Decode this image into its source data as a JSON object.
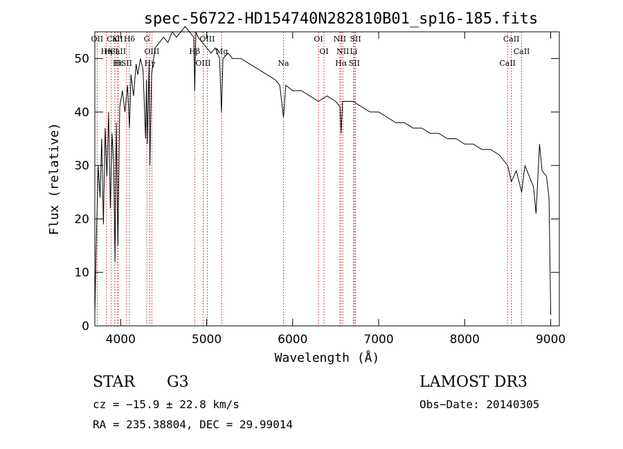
{
  "chart_data": {
    "type": "line",
    "title": "spec-56722-HD154740N282810B01_sp16-185.fits",
    "xlabel": "Wavelength (Å)",
    "ylabel": "Flux (relative)",
    "xlim": [
      3700,
      9100
    ],
    "ylim": [
      0,
      55
    ],
    "xticks": [
      4000,
      5000,
      6000,
      7000,
      8000,
      9000
    ],
    "yticks": [
      0,
      10,
      20,
      30,
      40,
      50
    ],
    "grid": false,
    "line_color": "#000000",
    "marker_color": "#cc2222",
    "series": [
      {
        "name": "flux",
        "x": [
          3700,
          3720,
          3740,
          3760,
          3780,
          3800,
          3820,
          3840,
          3860,
          3880,
          3900,
          3920,
          3934,
          3950,
          3968,
          3990,
          4020,
          4050,
          4080,
          4102,
          4120,
          4150,
          4180,
          4200,
          4230,
          4260,
          4290,
          4300,
          4310,
          4330,
          4340,
          4360,
          4400,
          4450,
          4500,
          4550,
          4600,
          4650,
          4700,
          4750,
          4800,
          4850,
          4861,
          4875,
          4900,
          4950,
          5000,
          5050,
          5100,
          5150,
          5172,
          5190,
          5250,
          5300,
          5400,
          5500,
          5600,
          5700,
          5800,
          5850,
          5893,
          5920,
          6000,
          6100,
          6200,
          6300,
          6400,
          6500,
          6550,
          6563,
          6580,
          6650,
          6700,
          6800,
          6900,
          7000,
          7100,
          7200,
          7300,
          7400,
          7500,
          7600,
          7700,
          7800,
          7900,
          8000,
          8100,
          8200,
          8300,
          8400,
          8450,
          8500,
          8542,
          8600,
          8662,
          8700,
          8750,
          8800,
          8830,
          8870,
          8900,
          8950,
          8980,
          9000
        ],
        "y": [
          2,
          18,
          30,
          24,
          35,
          19,
          37,
          28,
          40,
          22,
          36,
          30,
          12,
          38,
          15,
          41,
          44,
          40,
          45,
          37,
          47,
          43,
          49,
          47,
          50,
          48,
          35,
          46,
          34,
          49,
          30,
          47,
          52,
          53,
          54,
          53,
          55,
          54,
          55,
          56,
          55,
          54,
          44,
          55,
          54,
          53,
          52,
          51,
          52,
          50,
          40,
          50,
          51,
          50,
          50,
          49,
          48,
          47,
          46,
          45,
          39,
          45,
          44,
          44,
          43,
          42,
          43,
          42,
          41,
          36,
          42,
          42,
          42,
          41,
          40,
          40,
          39,
          38,
          38,
          37,
          37,
          36,
          36,
          35,
          35,
          34,
          34,
          33,
          33,
          32,
          31,
          30,
          27,
          29,
          25,
          30,
          28,
          26,
          21,
          34,
          29,
          28,
          24,
          2
        ]
      }
    ],
    "line_markers": [
      {
        "label": "CaII",
        "x": 3934
      },
      {
        "label": "CaII",
        "x": 3968
      },
      {
        "label": "Hε",
        "x": 3970
      },
      {
        "label": "K",
        "x": 3934
      },
      {
        "label": "HeI",
        "x": 3889
      },
      {
        "label": "SII",
        "x": 4069
      },
      {
        "label": "Hδ",
        "x": 4102
      },
      {
        "label": "Hη",
        "x": 3835
      },
      {
        "label": "H",
        "x": 3968
      },
      {
        "label": "OII",
        "x": 3727
      },
      {
        "label": "OIII",
        "x": 4363
      },
      {
        "label": "Hγ",
        "x": 4340
      },
      {
        "label": "G",
        "x": 4304
      },
      {
        "label": "Hβ",
        "x": 4861
      },
      {
        "label": "OIII",
        "x": 4959
      },
      {
        "label": "OIII",
        "x": 5007
      },
      {
        "label": "Mg",
        "x": 5175
      },
      {
        "label": "Na",
        "x": 5893
      },
      {
        "label": "OI",
        "x": 6300
      },
      {
        "label": "OI",
        "x": 6364
      },
      {
        "label": "Hα",
        "x": 6563
      },
      {
        "label": "NII",
        "x": 6548
      },
      {
        "label": "NII",
        "x": 6583
      },
      {
        "label": "SII",
        "x": 6717
      },
      {
        "label": "SII",
        "x": 6731
      },
      {
        "label": "Li",
        "x": 6708
      },
      {
        "label": "CaII",
        "x": 8498
      },
      {
        "label": "CaII",
        "x": 8542
      },
      {
        "label": "CaII",
        "x": 8662
      }
    ]
  },
  "info": {
    "star_type": "STAR",
    "subclass": "G3",
    "survey": "LAMOST DR3",
    "cz": "cz = −15.9 ± 22.8 km/s",
    "obs_date": "Obs−Date: 20140305",
    "coords": "RA = 235.38804, DEC =  29.99014"
  }
}
